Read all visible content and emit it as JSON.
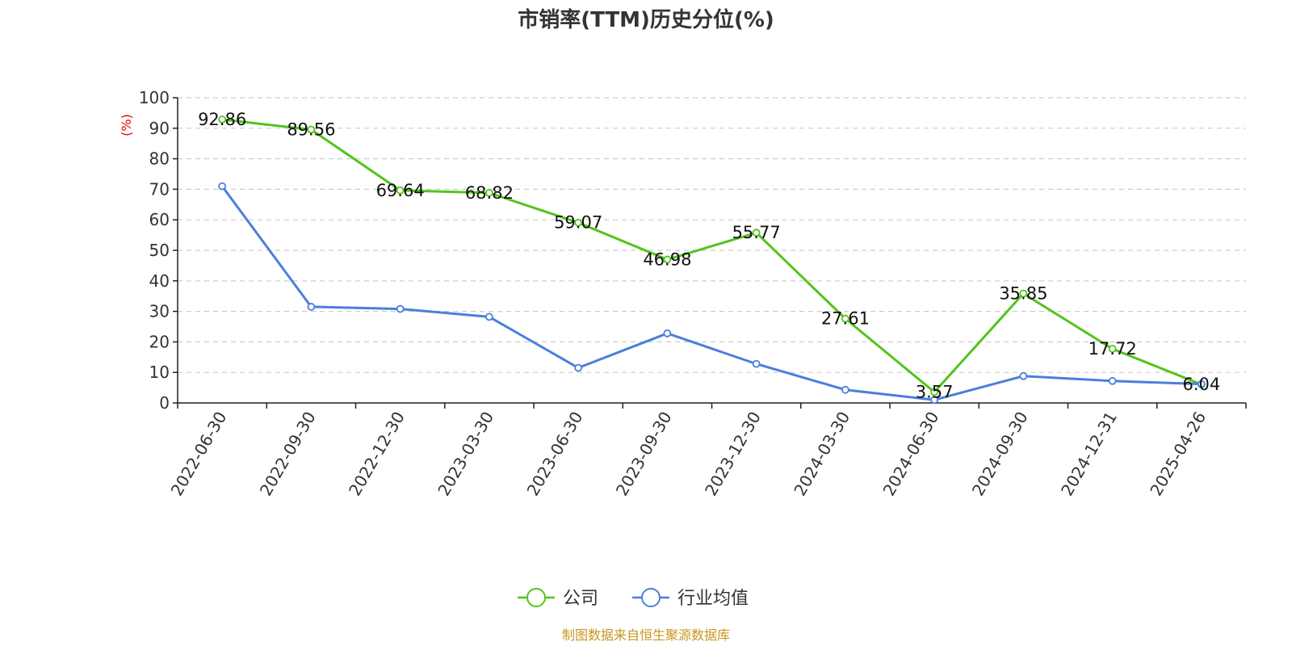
{
  "chart_data": {
    "type": "line",
    "title": "市销率(TTM)历史分位(%)",
    "ylabel": "(%)",
    "ylim": [
      0,
      100
    ],
    "yticks": [
      "0",
      "10",
      "20",
      "30",
      "40",
      "50",
      "60",
      "70",
      "80",
      "90",
      "100"
    ],
    "grid": true,
    "legend_position": "bottom-center",
    "categories": [
      "2022-06-30",
      "2022-09-30",
      "2022-12-30",
      "2023-03-30",
      "2023-06-30",
      "2023-09-30",
      "2023-12-30",
      "2024-03-30",
      "2024-06-30",
      "2024-09-30",
      "2024-12-31",
      "2025-04-26"
    ],
    "series": [
      {
        "name": "公司",
        "color": "#52c41a",
        "values": [
          92.86,
          89.56,
          69.64,
          68.82,
          59.07,
          46.98,
          55.77,
          27.61,
          3.57,
          35.85,
          17.72,
          6.04
        ],
        "labels": [
          "92.86",
          "89.56",
          "69.64",
          "68.82",
          "59.07",
          "46.98",
          "55.77",
          "27.61",
          "3.57",
          "35.85",
          "17.72",
          "6.04"
        ]
      },
      {
        "name": "行业均值",
        "color": "#4a7fdc",
        "values": [
          71.0,
          31.5,
          30.8,
          28.2,
          11.5,
          22.8,
          12.8,
          4.3,
          1.0,
          8.8,
          7.2,
          6.2
        ]
      }
    ]
  },
  "source_text": "制图数据来自恒生聚源数据库"
}
